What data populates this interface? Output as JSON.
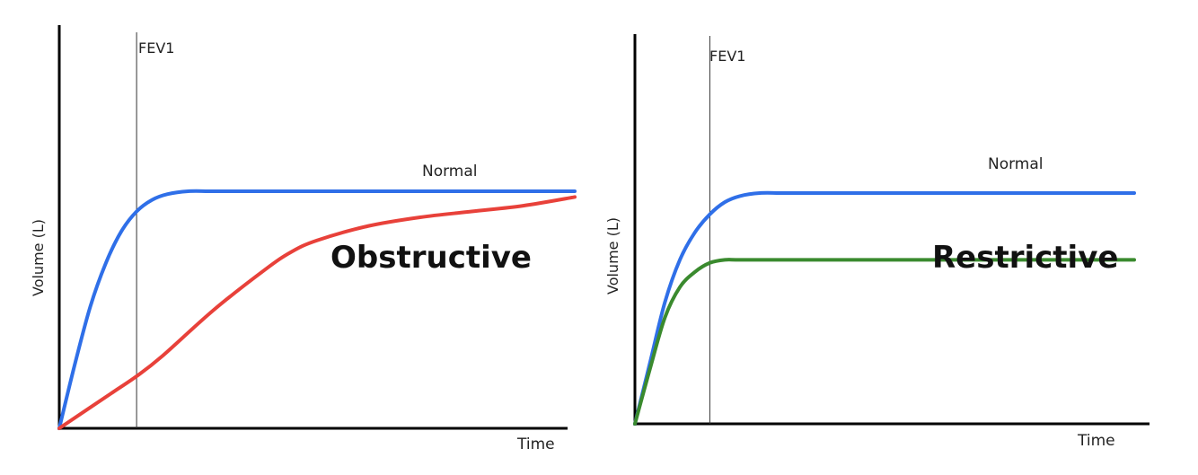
{
  "chart_data": [
    {
      "type": "line",
      "annotation": "Obstructive",
      "xlabel": "Time",
      "ylabel": "Volume (L)",
      "marker_label": "FEV1",
      "marker_x": 0.15,
      "xlim": [
        0,
        1
      ],
      "ylim": [
        0,
        1
      ],
      "grid": false,
      "series": [
        {
          "name": "Normal",
          "color": "#2f6fe8",
          "x": [
            0,
            0.03,
            0.06,
            0.09,
            0.12,
            0.15,
            0.18,
            0.21,
            0.25,
            0.3,
            0.4,
            0.6,
            0.8,
            1.0
          ],
          "y": [
            0,
            0.22,
            0.42,
            0.57,
            0.68,
            0.75,
            0.79,
            0.81,
            0.82,
            0.82,
            0.82,
            0.82,
            0.82,
            0.82
          ]
        },
        {
          "color": "#e8413a",
          "x": [
            0,
            0.1,
            0.15,
            0.2,
            0.3,
            0.4,
            0.45,
            0.5,
            0.6,
            0.7,
            0.8,
            0.9,
            1.0
          ],
          "y": [
            0,
            0.12,
            0.18,
            0.25,
            0.41,
            0.55,
            0.61,
            0.65,
            0.7,
            0.73,
            0.75,
            0.77,
            0.8
          ]
        }
      ]
    },
    {
      "type": "line",
      "annotation": "Restrictive",
      "xlabel": "Time",
      "ylabel": "Volume (L)",
      "marker_label": "FEV1",
      "marker_x": 0.15,
      "xlim": [
        0,
        1
      ],
      "ylim": [
        0,
        1
      ],
      "grid": false,
      "series": [
        {
          "name": "Normal",
          "color": "#2f6fe8",
          "x": [
            0,
            0.03,
            0.06,
            0.09,
            0.12,
            0.15,
            0.18,
            0.21,
            0.25,
            0.3,
            0.4,
            0.6,
            0.8,
            1.0
          ],
          "y": [
            0,
            0.2,
            0.4,
            0.54,
            0.63,
            0.69,
            0.73,
            0.75,
            0.76,
            0.76,
            0.76,
            0.76,
            0.76,
            0.76
          ]
        },
        {
          "color": "#3a8a2e",
          "x": [
            0,
            0.03,
            0.06,
            0.09,
            0.12,
            0.15,
            0.18,
            0.21,
            0.3,
            0.5,
            0.8,
            1.0
          ],
          "y": [
            0,
            0.18,
            0.35,
            0.45,
            0.5,
            0.53,
            0.54,
            0.54,
            0.54,
            0.54,
            0.54,
            0.54
          ]
        }
      ]
    }
  ]
}
